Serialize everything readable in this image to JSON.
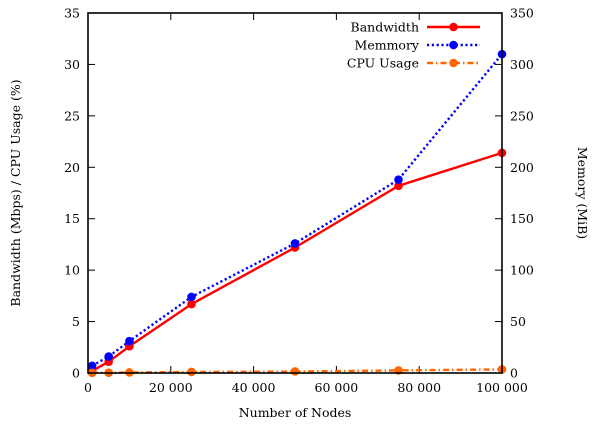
{
  "chart_data": {
    "type": "line",
    "xlabel": "Number of Nodes",
    "ylabel_left": "Bandwidth (Mbps) / CPU Usage (%)",
    "ylabel_right": "Memory (MiB)",
    "xlim": [
      0,
      100000
    ],
    "ylim_left": [
      0,
      35
    ],
    "ylim_right": [
      0,
      350
    ],
    "x_ticks": [
      0,
      20000,
      40000,
      60000,
      80000,
      100000
    ],
    "x_tick_labels": [
      "0",
      "20 000",
      "40 000",
      "60 000",
      "80 000",
      "100 000"
    ],
    "y_left_ticks": [
      0,
      5,
      10,
      15,
      20,
      25,
      30,
      35
    ],
    "y_left_tick_labels": [
      "0",
      "5",
      "10",
      "15",
      "20",
      "25",
      "30",
      "35"
    ],
    "y_right_ticks": [
      0,
      50,
      100,
      150,
      200,
      250,
      300,
      350
    ],
    "y_right_tick_labels": [
      "0",
      "50",
      "100",
      "150",
      "200",
      "250",
      "300",
      "350"
    ],
    "grid": false,
    "legend_position": "top-right",
    "series": [
      {
        "name": "Bandwidth",
        "axis": "left",
        "color": "#ff0000",
        "style": "solid",
        "x": [
          1000,
          5000,
          10000,
          25000,
          50000,
          75000,
          100000
        ],
        "y": [
          0.2,
          1.1,
          2.6,
          6.7,
          12.2,
          18.2,
          21.4
        ]
      },
      {
        "name": "Memmory",
        "axis": "right",
        "color": "#0000ff",
        "style": "dotted",
        "x": [
          1000,
          5000,
          10000,
          25000,
          50000,
          75000,
          100000
        ],
        "y": [
          7,
          16,
          31,
          74,
          126,
          188,
          310
        ]
      },
      {
        "name": "CPU Usage",
        "axis": "left",
        "color": "#ff6600",
        "style": "dash-dot",
        "x": [
          1000,
          5000,
          10000,
          25000,
          50000,
          75000,
          100000
        ],
        "y": [
          0.02,
          0.03,
          0.05,
          0.1,
          0.15,
          0.25,
          0.35
        ]
      }
    ]
  }
}
